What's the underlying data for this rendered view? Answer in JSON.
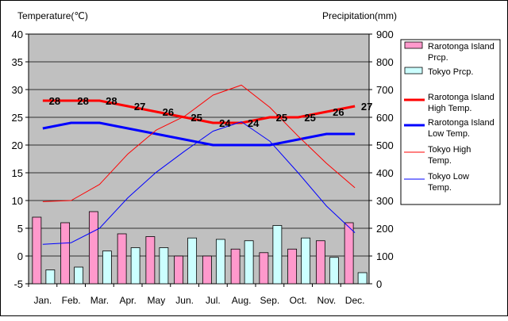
{
  "chart_data": {
    "type": "bar+line",
    "left_axis_label": "Temperature(℃)",
    "right_axis_label": "Precipitation(mm)",
    "left_ylim": [
      -5,
      40
    ],
    "left_ticks": [
      -5,
      0,
      5,
      10,
      15,
      20,
      25,
      30,
      35,
      40
    ],
    "right_ylim": [
      0,
      900
    ],
    "right_ticks": [
      0,
      100,
      200,
      300,
      400,
      500,
      600,
      700,
      800,
      900
    ],
    "categories": [
      "Jan.",
      "Feb.",
      "Mar.",
      "Apr.",
      "May",
      "Jun.",
      "Jul.",
      "Aug.",
      "Sep.",
      "Oct.",
      "Nov.",
      "Dec."
    ],
    "bar_series": [
      {
        "name": "Rarotonga Island Prcp.",
        "color": "#ff99cc",
        "values": [
          240,
          220,
          260,
          180,
          170,
          100,
          100,
          125,
          112,
          125,
          155,
          220
        ]
      },
      {
        "name": "Tokyo Prcp.",
        "color": "#ccffff",
        "values": [
          50,
          60,
          118,
          130,
          130,
          165,
          160,
          155,
          210,
          165,
          95,
          40
        ]
      }
    ],
    "line_series": [
      {
        "name": "Rarotonga Island High Temp.",
        "color": "#ff0000",
        "width": "thick",
        "values": [
          28,
          28,
          28,
          27,
          26,
          25,
          24,
          24,
          25,
          25,
          26,
          27
        ],
        "show_labels": true
      },
      {
        "name": "Rarotonga Island Low Temp.",
        "color": "#0000ff",
        "width": "thick",
        "values": [
          23,
          24,
          24,
          23,
          22,
          21,
          20,
          20,
          20,
          21,
          22,
          22
        ],
        "show_labels": false
      },
      {
        "name": "Tokyo High Temp.",
        "color": "#ff0000",
        "width": "thin",
        "values": [
          9.8,
          10.0,
          12.9,
          18.4,
          22.7,
          25.2,
          29.0,
          30.8,
          26.8,
          21.6,
          16.7,
          12.3
        ],
        "show_labels": false
      },
      {
        "name": "Tokyo Low Temp.",
        "color": "#0000ff",
        "width": "thin",
        "values": [
          2.1,
          2.4,
          5.0,
          10.5,
          15.1,
          18.9,
          22.5,
          24.2,
          20.7,
          15.0,
          9.0,
          4.2
        ],
        "show_labels": false
      }
    ],
    "legend_entries": [
      {
        "line1": "Rarotonga Island",
        "line2": "Prcp.",
        "kind": "bar",
        "color": "#ff99cc"
      },
      {
        "line1": "Tokyo Prcp.",
        "line2": "",
        "kind": "bar",
        "color": "#ccffff"
      },
      {
        "line1": "Rarotonga Island",
        "line2": "High Temp.",
        "kind": "line-thick",
        "color": "#ff0000"
      },
      {
        "line1": "Rarotonga Island",
        "line2": "Low Temp.",
        "kind": "line-thick",
        "color": "#0000ff"
      },
      {
        "line1": "Tokyo High",
        "line2": "Temp.",
        "kind": "line-thin",
        "color": "#ff0000"
      },
      {
        "line1": "Tokyo Low",
        "line2": "Temp.",
        "kind": "line-thin",
        "color": "#0000ff"
      }
    ],
    "legend_position": "right",
    "plot_background": "#c0c0c0",
    "grid": true
  }
}
